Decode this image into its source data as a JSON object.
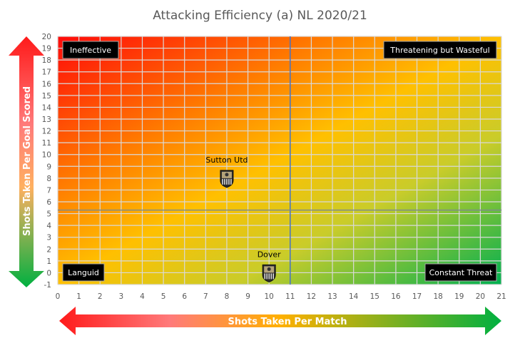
{
  "chart_data": {
    "type": "scatter",
    "title": "Attacking Efficiency (a) NL 2020/21",
    "xlabel": "Shots Taken Per Match",
    "ylabel": "Shots Taken Per Goal Scored",
    "xlim": [
      0,
      21
    ],
    "ylim": [
      -1,
      20
    ],
    "xticks": [
      "0",
      "1",
      "2",
      "3",
      "4",
      "5",
      "6",
      "7",
      "8",
      "9",
      "10",
      "11",
      "12",
      "13",
      "14",
      "15",
      "16",
      "17",
      "18",
      "19",
      "20",
      "21"
    ],
    "yticks": [
      "-1",
      "0",
      "1",
      "2",
      "3",
      "4",
      "5",
      "6",
      "7",
      "8",
      "9",
      "10",
      "11",
      "12",
      "13",
      "14",
      "15",
      "16",
      "17",
      "18",
      "19",
      "20"
    ],
    "grid": true,
    "reference_lines": {
      "x": 11.0,
      "y": 5.3
    },
    "quadrants": {
      "top_left": "Ineffective",
      "top_right": "Threatening but Wasteful",
      "bottom_left": "Languid",
      "bottom_right": "Constant Threat"
    },
    "points": [
      {
        "label": "Sutton Utd",
        "x": 8.0,
        "y": 8.0
      },
      {
        "label": "Dover",
        "x": 10.0,
        "y": 0.0
      }
    ]
  },
  "colors": {
    "red": "#ff1a1a",
    "orange": "#ffa500",
    "yellow": "#ffc000",
    "green": "#00b050",
    "line": "#4472c4"
  }
}
